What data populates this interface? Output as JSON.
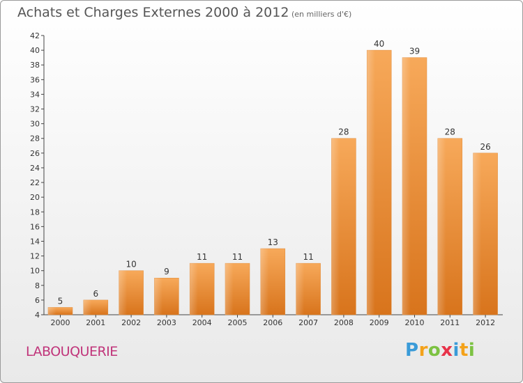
{
  "title": "Achats et Charges Externes 2000 à 2012",
  "unit": "(en milliers d'€)",
  "place": "LABOUQUERIE",
  "logo": {
    "p": "P",
    "r": "r",
    "o": "o",
    "x": "x",
    "i1": "i",
    "t": "t",
    "i2": "i"
  },
  "colors": {
    "bar": "#f0963a",
    "bar_light": "#f8b060",
    "bar_dark": "#d97a1e",
    "place": "#c0347a"
  },
  "chart_data": {
    "type": "bar",
    "categories": [
      "2000",
      "2001",
      "2002",
      "2003",
      "2004",
      "2005",
      "2006",
      "2007",
      "2008",
      "2009",
      "2010",
      "2011",
      "2012"
    ],
    "values": [
      5,
      6,
      10,
      9,
      11,
      11,
      13,
      11,
      28,
      40,
      39,
      28,
      26
    ],
    "ylim": [
      4,
      42
    ],
    "yticks": [
      4,
      6,
      8,
      10,
      12,
      14,
      16,
      18,
      20,
      22,
      24,
      26,
      28,
      30,
      32,
      34,
      36,
      38,
      40,
      42
    ],
    "grid": false
  }
}
